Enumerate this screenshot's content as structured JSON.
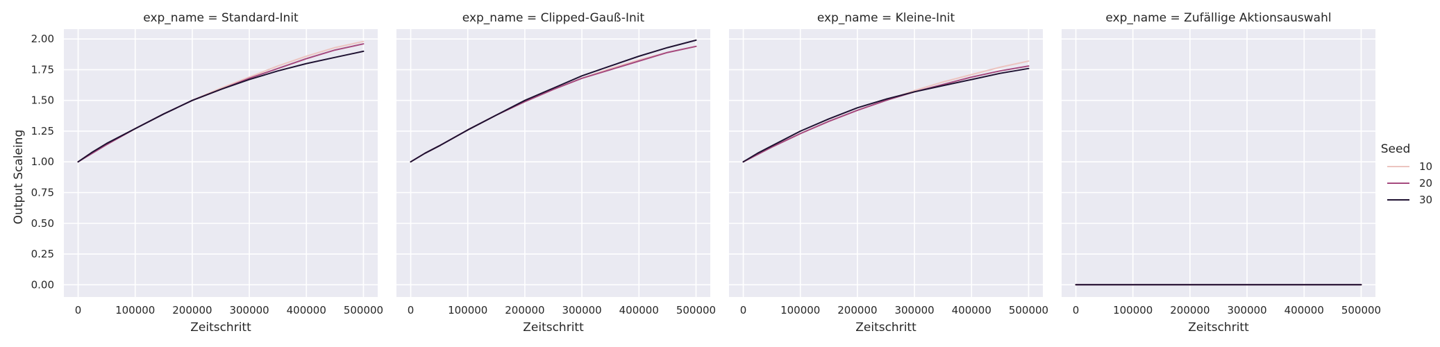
{
  "chart_data": {
    "type": "line",
    "shared_ylabel": "Output Scaleing",
    "ylim": [
      -0.1,
      2.08
    ],
    "xlim": [
      -25000,
      525000
    ],
    "yticks": [
      "0.00",
      "0.25",
      "0.50",
      "0.75",
      "1.00",
      "1.25",
      "1.50",
      "1.75",
      "2.00"
    ],
    "xticks": [
      "0",
      "100000",
      "200000",
      "300000",
      "400000",
      "500000"
    ],
    "grid": true,
    "legend": {
      "title": "Seed",
      "placement": "right",
      "entries": [
        {
          "label": "10",
          "color": "#ecc4c0"
        },
        {
          "label": "20",
          "color": "#a5497e"
        },
        {
          "label": "30",
          "color": "#1e1131"
        }
      ]
    },
    "panels": [
      {
        "title": "exp_name = Standard-Init",
        "xlabel": "Zeitschritt",
        "x": [
          0,
          25000,
          50000,
          100000,
          150000,
          200000,
          250000,
          300000,
          350000,
          400000,
          450000,
          500000
        ],
        "series": [
          {
            "name": "10",
            "values": [
              1.0,
              1.08,
              1.14,
              1.27,
              1.39,
              1.5,
              1.6,
              1.69,
              1.78,
              1.86,
              1.93,
              1.98
            ]
          },
          {
            "name": "20",
            "values": [
              1.0,
              1.07,
              1.14,
              1.27,
              1.39,
              1.5,
              1.59,
              1.68,
              1.76,
              1.84,
              1.91,
              1.96
            ]
          },
          {
            "name": "30",
            "values": [
              1.0,
              1.08,
              1.15,
              1.27,
              1.39,
              1.5,
              1.59,
              1.67,
              1.74,
              1.8,
              1.85,
              1.9
            ]
          }
        ]
      },
      {
        "title": "exp_name = Clipped-Gauß-Init",
        "xlabel": "Zeitschritt",
        "x": [
          0,
          25000,
          50000,
          100000,
          150000,
          200000,
          250000,
          300000,
          350000,
          400000,
          450000,
          500000
        ],
        "series": [
          {
            "name": "10",
            "values": [
              1.0,
              1.07,
              1.13,
              1.26,
              1.38,
              1.49,
              1.59,
              1.68,
              1.76,
              1.83,
              1.89,
              1.94
            ]
          },
          {
            "name": "20",
            "values": [
              1.0,
              1.07,
              1.13,
              1.26,
              1.38,
              1.49,
              1.59,
              1.68,
              1.75,
              1.82,
              1.89,
              1.94
            ]
          },
          {
            "name": "30",
            "values": [
              1.0,
              1.07,
              1.13,
              1.26,
              1.38,
              1.5,
              1.6,
              1.7,
              1.78,
              1.86,
              1.93,
              1.99
            ]
          }
        ]
      },
      {
        "title": "exp_name = Kleine-Init",
        "xlabel": "Zeitschritt",
        "x": [
          0,
          25000,
          50000,
          100000,
          150000,
          200000,
          250000,
          300000,
          350000,
          400000,
          450000,
          500000
        ],
        "series": [
          {
            "name": "10",
            "values": [
              1.0,
              1.06,
              1.12,
              1.23,
              1.33,
              1.42,
              1.5,
              1.58,
              1.65,
              1.71,
              1.77,
              1.82
            ]
          },
          {
            "name": "20",
            "values": [
              1.0,
              1.06,
              1.12,
              1.23,
              1.33,
              1.42,
              1.5,
              1.57,
              1.63,
              1.69,
              1.74,
              1.78
            ]
          },
          {
            "name": "30",
            "values": [
              1.0,
              1.07,
              1.13,
              1.25,
              1.35,
              1.44,
              1.51,
              1.57,
              1.62,
              1.67,
              1.72,
              1.76
            ]
          }
        ]
      },
      {
        "title": "exp_name = Zufällige Aktionsauswahl",
        "xlabel": "Zeitschritt",
        "x": [
          0,
          500000
        ],
        "series": [
          {
            "name": "10",
            "values": [
              0.0,
              0.0
            ]
          },
          {
            "name": "20",
            "values": [
              0.0,
              0.0
            ]
          },
          {
            "name": "30",
            "values": [
              0.0,
              0.0
            ]
          }
        ]
      }
    ]
  }
}
